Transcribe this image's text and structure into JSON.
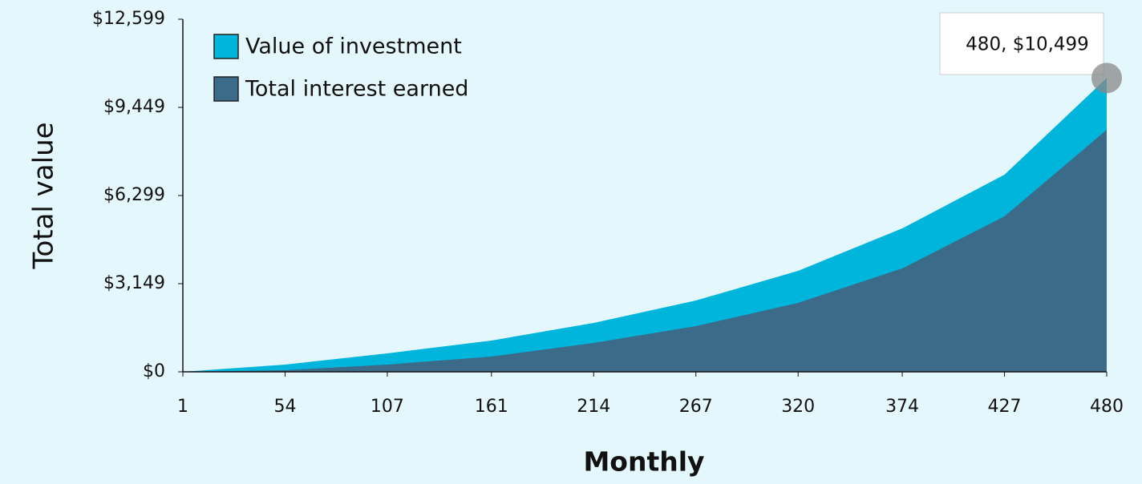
{
  "chart_data": {
    "type": "area",
    "xlabel": "Monthly",
    "ylabel": "Total value",
    "x": [
      1,
      54,
      107,
      161,
      214,
      267,
      320,
      374,
      427,
      480
    ],
    "series": [
      {
        "name": "Value of investment",
        "color": "#00b5dc",
        "values": [
          0,
          258,
          659,
          1117,
          1747,
          2548,
          3608,
          5125,
          7044,
          10499
        ]
      },
      {
        "name": "Total interest earned",
        "color": "#3c6a89",
        "values": [
          0,
          57,
          258,
          544,
          1031,
          1632,
          2462,
          3694,
          5555,
          8647
        ]
      }
    ],
    "xlim": [
      1,
      480
    ],
    "xticks": [
      1,
      54,
      107,
      161,
      214,
      267,
      320,
      374,
      427,
      480
    ],
    "ylim": [
      0,
      12599
    ],
    "yticks": [
      {
        "value": 0,
        "label": "$0"
      },
      {
        "value": 3149,
        "label": "$3,149"
      },
      {
        "value": 6299,
        "label": "$6,299"
      },
      {
        "value": 9449,
        "label": "$9,449"
      },
      {
        "value": 12599,
        "label": "$12,599"
      }
    ],
    "legend": "upper left",
    "tooltip": "480, $10,499"
  }
}
